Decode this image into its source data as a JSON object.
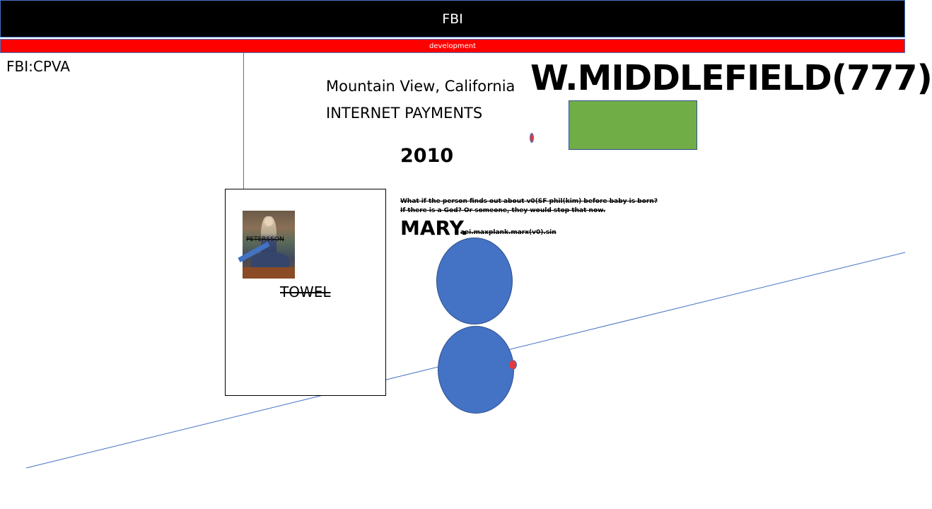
{
  "header": {
    "title": "FBI",
    "subtitle": "development"
  },
  "labels": {
    "corner": "FBI:CPVA",
    "city": "Mountain View, California",
    "payments": "INTERNET PAYMENTS",
    "year": "2010",
    "headline": "W.MIDDLEFIELD(777)",
    "note_line1": "What if the person finds out about v0(SF phil(kim) before baby is born?",
    "note_line2": "If there is a God? Or someone, they would stop that now.",
    "mary": "MARY.",
    "mary_sub": "aei.maxplank.marx(v0).sin",
    "painting_label": "PETERSSON",
    "towel": "TOWEL"
  },
  "colors": {
    "header_bg": "#000000",
    "sub_bar": "#ff0000",
    "circle": "#4472c4",
    "green_box": "#70ad47",
    "line": "#4472c4",
    "dot": "#e03a3e"
  }
}
